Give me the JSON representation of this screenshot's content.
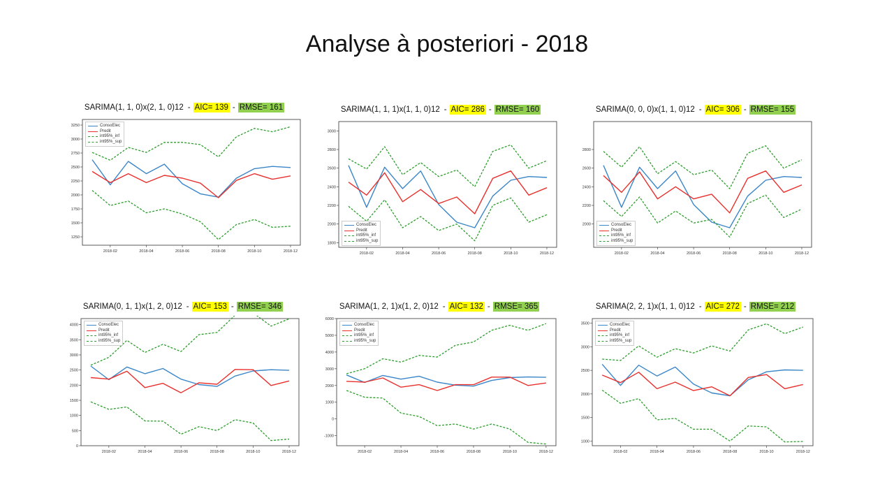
{
  "slide": {
    "title": "Analyse à posteriori - 2018"
  },
  "colors": {
    "conso": "#3a86c8",
    "predit": "#e8302c",
    "int95": "#2a9d2a",
    "aic_bg": "#ffff00",
    "rmse_bg": "#92d050"
  },
  "legend_labels": [
    "ConsoElec",
    "Predit",
    "int95%_inf",
    "int95%_sup"
  ],
  "chart_data": [
    {
      "type": "line",
      "title": "SARIMA(1, 1, 0)x(2, 1, 0)12",
      "aic": "AIC= 139",
      "rmse": "RMSE= 161",
      "x": [
        "2018-01",
        "2018-02",
        "2018-03",
        "2018-04",
        "2018-05",
        "2018-06",
        "2018-07",
        "2018-08",
        "2018-09",
        "2018-10",
        "2018-11",
        "2018-12"
      ],
      "xticks": [
        "2018-02",
        "2018-04",
        "2018-06",
        "2018-08",
        "2018-10",
        "2018-12"
      ],
      "ylim": [
        1100,
        3350
      ],
      "yticks": [
        1250,
        1500,
        1750,
        2000,
        2250,
        2500,
        2750,
        3000,
        3250
      ],
      "legend": "upper-left",
      "series": [
        {
          "name": "ConsoElec",
          "values": [
            2630,
            2180,
            2600,
            2380,
            2550,
            2200,
            2020,
            1960,
            2300,
            2470,
            2510,
            2490
          ]
        },
        {
          "name": "Predit",
          "values": [
            2420,
            2220,
            2380,
            2220,
            2350,
            2300,
            2210,
            1950,
            2260,
            2380,
            2280,
            2340
          ]
        },
        {
          "name": "int95%_inf",
          "values": [
            2080,
            1810,
            1890,
            1680,
            1750,
            1660,
            1520,
            1200,
            1470,
            1560,
            1420,
            1440
          ]
        },
        {
          "name": "int95%_sup",
          "values": [
            2760,
            2620,
            2850,
            2760,
            2940,
            2940,
            2900,
            2680,
            3040,
            3190,
            3130,
            3220
          ]
        }
      ]
    },
    {
      "type": "line",
      "title": "SARIMA(1, 1, 1)x(1, 1, 0)12",
      "aic": "AIC= 286",
      "rmse": "RMSE= 160",
      "x": [
        "2018-01",
        "2018-02",
        "2018-03",
        "2018-04",
        "2018-05",
        "2018-06",
        "2018-07",
        "2018-08",
        "2018-09",
        "2018-10",
        "2018-11",
        "2018-12"
      ],
      "xticks": [
        "2018-02",
        "2018-04",
        "2018-06",
        "2018-08",
        "2018-10",
        "2018-12"
      ],
      "ylim": [
        1750,
        3100
      ],
      "yticks": [
        1800,
        2000,
        2200,
        2400,
        2600,
        2800,
        3000
      ],
      "legend": "lower-left",
      "series": [
        {
          "name": "ConsoElec",
          "values": [
            2630,
            2180,
            2610,
            2380,
            2570,
            2210,
            2020,
            1960,
            2300,
            2470,
            2510,
            2500
          ]
        },
        {
          "name": "Predit",
          "values": [
            2450,
            2310,
            2550,
            2240,
            2370,
            2220,
            2290,
            2110,
            2490,
            2570,
            2310,
            2390
          ]
        },
        {
          "name": "int95%_inf",
          "values": [
            2190,
            2030,
            2260,
            1960,
            2080,
            1930,
            2000,
            1820,
            2200,
            2280,
            2020,
            2100
          ]
        },
        {
          "name": "int95%_sup",
          "values": [
            2700,
            2590,
            2830,
            2530,
            2660,
            2510,
            2580,
            2400,
            2780,
            2850,
            2600,
            2680
          ]
        }
      ]
    },
    {
      "type": "line",
      "title": "SARIMA(0, 0, 0)x(1, 1, 0)12",
      "aic": "AIC= 306",
      "rmse": "RMSE= 155",
      "x": [
        "2018-01",
        "2018-02",
        "2018-03",
        "2018-04",
        "2018-05",
        "2018-06",
        "2018-07",
        "2018-08",
        "2018-09",
        "2018-10",
        "2018-11",
        "2018-12"
      ],
      "xticks": [
        "2018-02",
        "2018-04",
        "2018-06",
        "2018-08",
        "2018-10",
        "2018-12"
      ],
      "ylim": [
        1750,
        3100
      ],
      "yticks": [
        2000,
        2200,
        2400,
        2600,
        2800
      ],
      "legend": "lower-left",
      "series": [
        {
          "name": "ConsoElec",
          "values": [
            2630,
            2180,
            2610,
            2380,
            2570,
            2210,
            2020,
            1960,
            2300,
            2470,
            2510,
            2500
          ]
        },
        {
          "name": "Predit",
          "values": [
            2520,
            2340,
            2560,
            2270,
            2400,
            2270,
            2320,
            2120,
            2490,
            2570,
            2340,
            2420
          ]
        },
        {
          "name": "int95%_inf",
          "values": [
            2250,
            2080,
            2290,
            2010,
            2140,
            2010,
            2050,
            1860,
            2220,
            2310,
            2070,
            2160
          ]
        },
        {
          "name": "int95%_sup",
          "values": [
            2780,
            2610,
            2830,
            2540,
            2670,
            2530,
            2580,
            2380,
            2760,
            2840,
            2600,
            2690
          ]
        }
      ]
    },
    {
      "type": "line",
      "title": "SARIMA(0, 1, 1)x(1, 2, 0)12",
      "aic": "AIC= 153",
      "rmse": "RMSE= 346",
      "x": [
        "2018-01",
        "2018-02",
        "2018-03",
        "2018-04",
        "2018-05",
        "2018-06",
        "2018-07",
        "2018-08",
        "2018-09",
        "2018-10",
        "2018-11",
        "2018-12"
      ],
      "xticks": [
        "2018-02",
        "2018-04",
        "2018-06",
        "2018-08",
        "2018-10",
        "2018-12"
      ],
      "ylim": [
        0,
        4200
      ],
      "yticks": [
        0,
        500,
        1000,
        1500,
        2000,
        2500,
        3000,
        3500,
        4000
      ],
      "legend": "upper-left",
      "series": [
        {
          "name": "ConsoElec",
          "values": [
            2630,
            2180,
            2600,
            2380,
            2550,
            2200,
            2020,
            1960,
            2300,
            2470,
            2510,
            2490
          ]
        },
        {
          "name": "Predit",
          "values": [
            2250,
            2200,
            2460,
            1920,
            2060,
            1750,
            2080,
            2030,
            2520,
            2510,
            1990,
            2140
          ]
        },
        {
          "name": "int95%_inf",
          "values": [
            1450,
            1200,
            1280,
            820,
            810,
            380,
            630,
            500,
            860,
            750,
            170,
            220
          ]
        },
        {
          "name": "int95%_sup",
          "values": [
            2660,
            2920,
            3480,
            3080,
            3350,
            3110,
            3670,
            3740,
            4310,
            4390,
            3950,
            4190
          ]
        }
      ]
    },
    {
      "type": "line",
      "title": "SARIMA(1, 2, 1)x(1, 2, 0)12",
      "aic": "AIC= 132",
      "rmse": "RMSE= 365",
      "x": [
        "2018-01",
        "2018-02",
        "2018-03",
        "2018-04",
        "2018-05",
        "2018-06",
        "2018-07",
        "2018-08",
        "2018-09",
        "2018-10",
        "2018-11",
        "2018-12"
      ],
      "xticks": [
        "2018-02",
        "2018-04",
        "2018-06",
        "2018-08",
        "2018-10",
        "2018-12"
      ],
      "ylim": [
        -1600,
        6000
      ],
      "yticks": [
        -1000,
        0,
        1000,
        2000,
        3000,
        4000,
        5000,
        6000
      ],
      "legend": "upper-left",
      "series": [
        {
          "name": "ConsoElec",
          "values": [
            2630,
            2180,
            2600,
            2380,
            2550,
            2200,
            2020,
            1960,
            2300,
            2470,
            2510,
            2490
          ]
        },
        {
          "name": "Predit",
          "values": [
            2250,
            2200,
            2450,
            1900,
            2050,
            1700,
            2050,
            2050,
            2500,
            2500,
            2000,
            2150
          ]
        },
        {
          "name": "int95%_inf",
          "values": [
            1700,
            1300,
            1250,
            350,
            150,
            -400,
            -300,
            -600,
            -300,
            -600,
            -1400,
            -1500
          ]
        },
        {
          "name": "int95%_sup",
          "values": [
            2700,
            3000,
            3600,
            3400,
            3800,
            3700,
            4400,
            4600,
            5300,
            5600,
            5300,
            5700
          ]
        }
      ]
    },
    {
      "type": "line",
      "title": "SARIMA(2, 2, 1)x(1, 1, 0)12",
      "aic": "AIC= 272",
      "rmse": "RMSE= 212",
      "x": [
        "2018-01",
        "2018-02",
        "2018-03",
        "2018-04",
        "2018-05",
        "2018-06",
        "2018-07",
        "2018-08",
        "2018-09",
        "2018-10",
        "2018-11",
        "2018-12"
      ],
      "xticks": [
        "2018-02",
        "2018-04",
        "2018-06",
        "2018-08",
        "2018-10",
        "2018-12"
      ],
      "ylim": [
        900,
        3600
      ],
      "yticks": [
        1000,
        1500,
        2000,
        2500,
        3000,
        3500
      ],
      "legend": "upper-left",
      "series": [
        {
          "name": "ConsoElec",
          "values": [
            2630,
            2180,
            2610,
            2380,
            2570,
            2210,
            2020,
            1960,
            2300,
            2470,
            2510,
            2500
          ]
        },
        {
          "name": "Predit",
          "values": [
            2400,
            2240,
            2460,
            2110,
            2250,
            2070,
            2150,
            1960,
            2350,
            2410,
            2110,
            2200
          ]
        },
        {
          "name": "int95%_inf",
          "values": [
            2080,
            1800,
            1900,
            1450,
            1480,
            1250,
            1250,
            1000,
            1320,
            1300,
            980,
            990
          ]
        },
        {
          "name": "int95%_sup",
          "values": [
            2740,
            2710,
            3020,
            2780,
            2960,
            2870,
            3020,
            2910,
            3360,
            3490,
            3280,
            3420
          ]
        }
      ]
    }
  ]
}
